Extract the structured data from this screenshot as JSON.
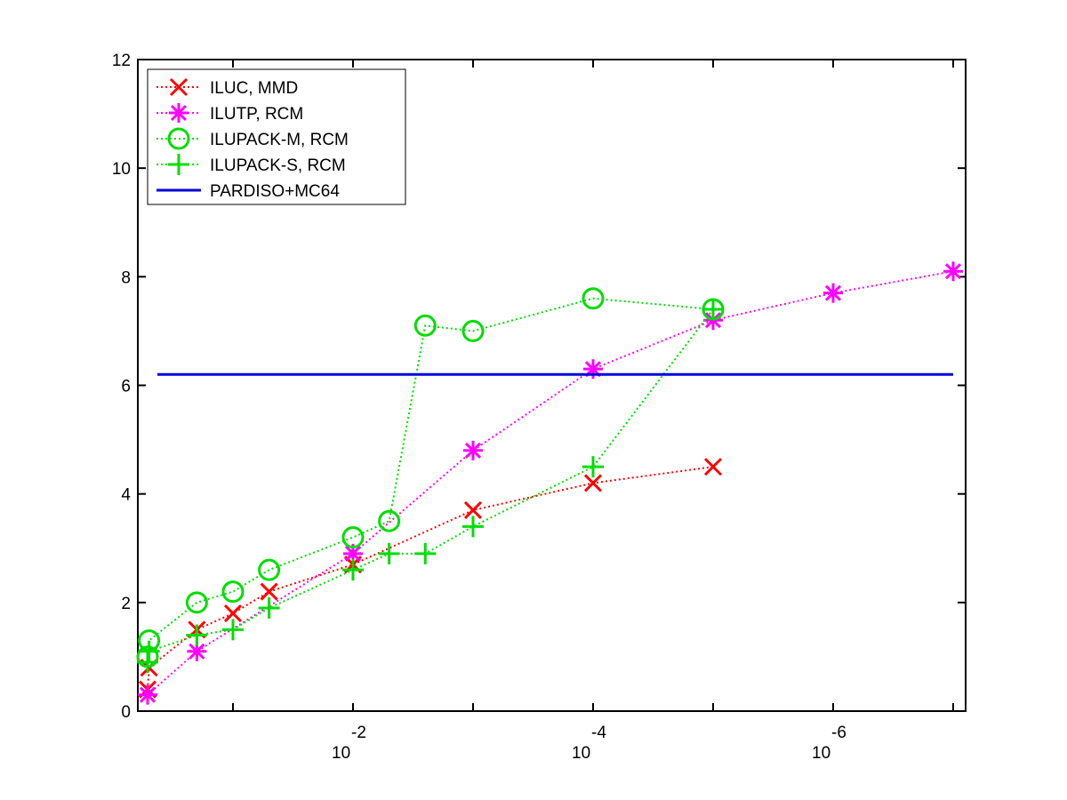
{
  "chart_data": {
    "type": "line",
    "title": "",
    "xlabel": "",
    "ylabel": "",
    "x_scale": "log10, reversed",
    "xlim": [
      1,
      1e-07
    ],
    "ylim": [
      0,
      12
    ],
    "y_ticks": [
      0,
      2,
      4,
      6,
      8,
      10,
      12
    ],
    "x_ticks": [
      {
        "base": "10",
        "exp": "-2"
      },
      {
        "base": "10",
        "exp": "-4"
      },
      {
        "base": "10",
        "exp": "-6"
      }
    ],
    "grid": false,
    "legend_position": "top-left",
    "series": [
      {
        "name": "ILUC, MMD",
        "color": "#ff0000",
        "marker": "x",
        "line": "dotted",
        "x": [
          0.9,
          0.5,
          0.2,
          0.1,
          0.05,
          0.01,
          0.001,
          0.0001,
          1e-05
        ],
        "y": [
          0.4,
          0.8,
          1.5,
          1.8,
          2.2,
          2.7,
          3.7,
          4.2,
          4.5
        ]
      },
      {
        "name": "ILUTP, RCM",
        "color": "#ff00ff",
        "marker": "asterisk",
        "line": "dotted",
        "x": [
          0.9,
          0.2,
          0.01,
          0.001,
          0.0001,
          1e-05,
          1e-06,
          1e-07
        ],
        "y": [
          0.3,
          1.1,
          2.9,
          4.8,
          6.3,
          7.2,
          7.7,
          8.1
        ]
      },
      {
        "name": "ILUPACK-M, RCM",
        "color": "#00dd00",
        "marker": "circle",
        "line": "dotted",
        "x": [
          0.9,
          0.5,
          0.2,
          0.1,
          0.05,
          0.01,
          0.005,
          0.0025,
          0.001,
          0.0001,
          1e-05
        ],
        "y": [
          1.0,
          1.3,
          2.0,
          2.2,
          2.6,
          3.2,
          3.5,
          7.1,
          7.0,
          7.6,
          7.4
        ]
      },
      {
        "name": "ILUPACK-S, RCM",
        "color": "#00dd00",
        "marker": "plus",
        "line": "dotted",
        "x": [
          0.9,
          0.5,
          0.2,
          0.1,
          0.05,
          0.01,
          0.005,
          0.0025,
          0.001,
          0.0001,
          1e-05
        ],
        "y": [
          0.9,
          1.1,
          1.4,
          1.5,
          1.9,
          2.6,
          2.9,
          2.9,
          3.4,
          4.5,
          7.4
        ]
      },
      {
        "name": "PARDISO+MC64",
        "color": "#0000dd",
        "marker": "none",
        "line": "solid",
        "x": [
          0.9,
          1e-07
        ],
        "y": [
          6.2,
          6.2
        ]
      }
    ]
  }
}
